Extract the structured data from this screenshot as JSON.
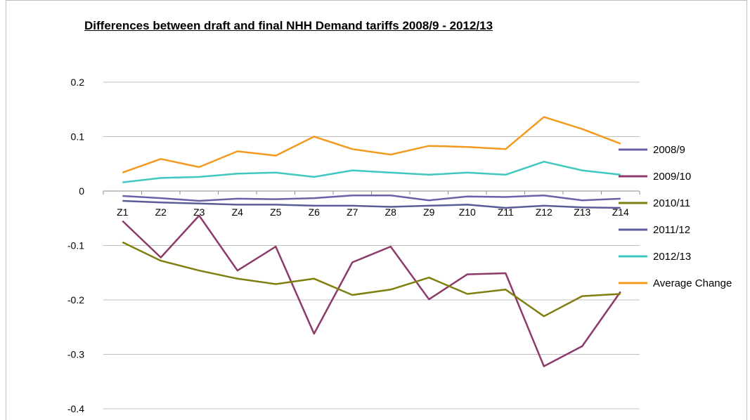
{
  "chart_data": {
    "type": "line",
    "title": "Differences between draft and final NHH Demand tariffs 2008/9 - 2012/13",
    "xlabel": "",
    "ylabel": "",
    "categories": [
      "Z1",
      "Z2",
      "Z3",
      "Z4",
      "Z5",
      "Z6",
      "Z7",
      "Z8",
      "Z9",
      "Z10",
      "Z11",
      "Z12",
      "Z13",
      "Z14"
    ],
    "ylim": [
      -0.4,
      0.2
    ],
    "yticks": [
      -0.4,
      -0.3,
      -0.2,
      -0.1,
      0,
      0.1,
      0.2
    ],
    "ytick_labels": [
      "-0.4",
      "-0.3",
      "-0.2",
      "-0.1",
      "0",
      "0.1",
      "0.2"
    ],
    "grid": true,
    "legend_position": "right",
    "series": [
      {
        "name": "2008/9",
        "color": "#6a62a8",
        "values": [
          -0.009,
          -0.013,
          -0.018,
          -0.014,
          -0.015,
          -0.013,
          -0.008,
          -0.008,
          -0.017,
          -0.01,
          -0.011,
          -0.008,
          -0.017,
          -0.014
        ]
      },
      {
        "name": "2009/10",
        "color": "#8b3a6a",
        "values": [
          -0.055,
          -0.122,
          -0.045,
          -0.146,
          -0.102,
          -0.262,
          -0.131,
          -0.102,
          -0.199,
          -0.153,
          -0.151,
          -0.322,
          -0.285,
          -0.185
        ]
      },
      {
        "name": "2010/11",
        "color": "#7f7f10",
        "values": [
          -0.094,
          -0.128,
          -0.146,
          -0.161,
          -0.171,
          -0.161,
          -0.191,
          -0.181,
          -0.159,
          -0.189,
          -0.181,
          -0.23,
          -0.193,
          -0.189
        ]
      },
      {
        "name": "2011/12",
        "color": "#5b5b9a",
        "values": [
          -0.018,
          -0.021,
          -0.023,
          -0.025,
          -0.025,
          -0.027,
          -0.027,
          -0.029,
          -0.027,
          -0.025,
          -0.031,
          -0.027,
          -0.03,
          -0.031
        ]
      },
      {
        "name": "2012/13",
        "color": "#40c8c0",
        "values": [
          0.016,
          0.024,
          0.026,
          0.032,
          0.034,
          0.026,
          0.038,
          0.034,
          0.03,
          0.034,
          0.03,
          0.054,
          0.038,
          0.03
        ]
      },
      {
        "name": "Average Change",
        "color": "#f29a1f",
        "values": [
          0.034,
          0.059,
          0.044,
          0.073,
          0.065,
          0.1,
          0.077,
          0.067,
          0.083,
          0.081,
          0.077,
          0.136,
          0.114,
          0.087
        ]
      }
    ]
  }
}
